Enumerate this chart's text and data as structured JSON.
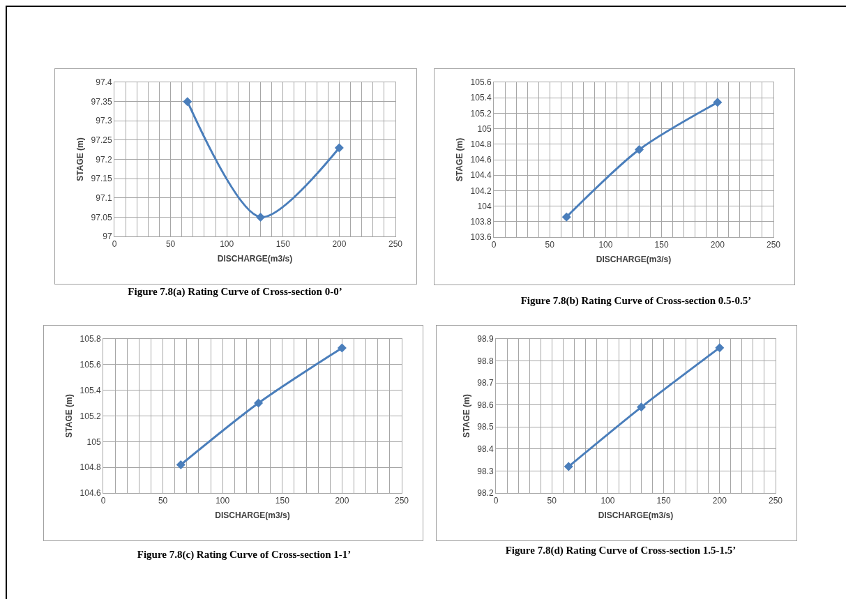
{
  "chart_data": [
    {
      "type": "line",
      "title": "Figure 7.8(a) Rating Curve of Cross-section 0-0’",
      "xlabel": "DISCHARGE(m3/s)",
      "ylabel": "STAGE (m)",
      "x": [
        65,
        130,
        200
      ],
      "series": [
        {
          "color": "#4a7ebb",
          "values": [
            97.35,
            97.05,
            97.23
          ]
        }
      ],
      "xlim": [
        0,
        250
      ],
      "xticks": [
        0,
        {
          "value": 10,
          "label": null
        },
        {
          "value": 20,
          "label": null
        },
        {
          "value": 30,
          "label": null
        },
        {
          "value": 40,
          "label": null
        },
        50,
        {
          "value": 60,
          "label": null
        },
        {
          "value": 70,
          "label": null
        },
        {
          "value": 80,
          "label": null
        },
        {
          "value": 90,
          "label": null
        },
        100,
        {
          "value": 110,
          "label": null
        },
        {
          "value": 120,
          "label": null
        },
        {
          "value": 130,
          "label": null
        },
        {
          "value": 140,
          "label": null
        },
        150,
        {
          "value": 160,
          "label": null
        },
        {
          "value": 170,
          "label": null
        },
        {
          "value": 180,
          "label": null
        },
        {
          "value": 190,
          "label": null
        },
        200,
        {
          "value": 210,
          "label": null
        },
        {
          "value": 220,
          "label": null
        },
        {
          "value": 230,
          "label": null
        },
        {
          "value": 240,
          "label": null
        },
        250
      ],
      "ylim": [
        97,
        97.4
      ],
      "yticks": [
        97,
        97.05,
        97.1,
        97.15,
        97.2,
        97.25,
        97.3,
        97.35,
        97.4
      ],
      "grid": true,
      "marker": "diamond",
      "line_style": "solid"
    },
    {
      "type": "line",
      "title": "Figure 7.8(b) Rating Curve of Cross-section 0.5-0.5’",
      "xlabel": "DISCHARGE(m3/s)",
      "ylabel": "STAGE (m)",
      "x": [
        65,
        130,
        200
      ],
      "series": [
        {
          "color": "#4a7ebb",
          "values": [
            103.86,
            104.73,
            105.34
          ]
        }
      ],
      "xlim": [
        0,
        250
      ],
      "xticks": [
        0,
        {
          "value": 10,
          "label": null
        },
        {
          "value": 20,
          "label": null
        },
        {
          "value": 30,
          "label": null
        },
        {
          "value": 40,
          "label": null
        },
        50,
        {
          "value": 60,
          "label": null
        },
        {
          "value": 70,
          "label": null
        },
        {
          "value": 80,
          "label": null
        },
        {
          "value": 90,
          "label": null
        },
        100,
        {
          "value": 110,
          "label": null
        },
        {
          "value": 120,
          "label": null
        },
        {
          "value": 130,
          "label": null
        },
        {
          "value": 140,
          "label": null
        },
        150,
        {
          "value": 160,
          "label": null
        },
        {
          "value": 170,
          "label": null
        },
        {
          "value": 180,
          "label": null
        },
        {
          "value": 190,
          "label": null
        },
        200,
        {
          "value": 210,
          "label": null
        },
        {
          "value": 220,
          "label": null
        },
        {
          "value": 230,
          "label": null
        },
        {
          "value": 240,
          "label": null
        },
        250
      ],
      "ylim": [
        103.6,
        105.6
      ],
      "yticks": [
        103.6,
        103.8,
        104,
        104.2,
        104.4,
        104.6,
        104.8,
        105,
        105.2,
        105.4,
        105.6
      ],
      "grid": true,
      "marker": "diamond",
      "line_style": "solid"
    },
    {
      "type": "line",
      "title": "Figure 7.8(c) Rating Curve of Cross-section 1-1’",
      "xlabel": "DISCHARGE(m3/s)",
      "ylabel": "STAGE (m)",
      "x": [
        65,
        130,
        200
      ],
      "series": [
        {
          "color": "#4a7ebb",
          "values": [
            104.82,
            105.3,
            105.73
          ]
        }
      ],
      "xlim": [
        0,
        250
      ],
      "xticks": [
        0,
        {
          "value": 10,
          "label": null
        },
        {
          "value": 20,
          "label": null
        },
        {
          "value": 30,
          "label": null
        },
        {
          "value": 40,
          "label": null
        },
        50,
        {
          "value": 60,
          "label": null
        },
        {
          "value": 70,
          "label": null
        },
        {
          "value": 80,
          "label": null
        },
        {
          "value": 90,
          "label": null
        },
        100,
        {
          "value": 110,
          "label": null
        },
        {
          "value": 120,
          "label": null
        },
        {
          "value": 130,
          "label": null
        },
        {
          "value": 140,
          "label": null
        },
        150,
        {
          "value": 160,
          "label": null
        },
        {
          "value": 170,
          "label": null
        },
        {
          "value": 180,
          "label": null
        },
        {
          "value": 190,
          "label": null
        },
        200,
        {
          "value": 210,
          "label": null
        },
        {
          "value": 220,
          "label": null
        },
        {
          "value": 230,
          "label": null
        },
        {
          "value": 240,
          "label": null
        },
        250
      ],
      "ylim": [
        104.6,
        105.8
      ],
      "yticks": [
        104.6,
        104.8,
        105,
        105.2,
        105.4,
        105.6,
        105.8
      ],
      "grid": true,
      "marker": "diamond",
      "line_style": "solid"
    },
    {
      "type": "line",
      "title": "Figure 7.8(d) Rating Curve of Cross-section 1.5-1.5’",
      "xlabel": "DISCHARGE(m3/s)",
      "ylabel": "STAGE (m)",
      "x": [
        65,
        130,
        200
      ],
      "series": [
        {
          "color": "#4a7ebb",
          "values": [
            98.32,
            98.59,
            98.86
          ]
        }
      ],
      "xlim": [
        0,
        250
      ],
      "xticks": [
        0,
        {
          "value": 10,
          "label": null
        },
        {
          "value": 20,
          "label": null
        },
        {
          "value": 30,
          "label": null
        },
        {
          "value": 40,
          "label": null
        },
        50,
        {
          "value": 60,
          "label": null
        },
        {
          "value": 70,
          "label": null
        },
        {
          "value": 80,
          "label": null
        },
        {
          "value": 90,
          "label": null
        },
        100,
        {
          "value": 110,
          "label": null
        },
        {
          "value": 120,
          "label": null
        },
        {
          "value": 130,
          "label": null
        },
        {
          "value": 140,
          "label": null
        },
        150,
        {
          "value": 160,
          "label": null
        },
        {
          "value": 170,
          "label": null
        },
        {
          "value": 180,
          "label": null
        },
        {
          "value": 190,
          "label": null
        },
        200,
        {
          "value": 210,
          "label": null
        },
        {
          "value": 220,
          "label": null
        },
        {
          "value": 230,
          "label": null
        },
        {
          "value": 240,
          "label": null
        },
        250
      ],
      "ylim": [
        98.2,
        98.9
      ],
      "yticks": [
        98.2,
        98.3,
        98.4,
        98.5,
        98.6,
        98.7,
        98.8,
        98.9
      ],
      "grid": true,
      "marker": "diamond",
      "line_style": "solid"
    }
  ]
}
